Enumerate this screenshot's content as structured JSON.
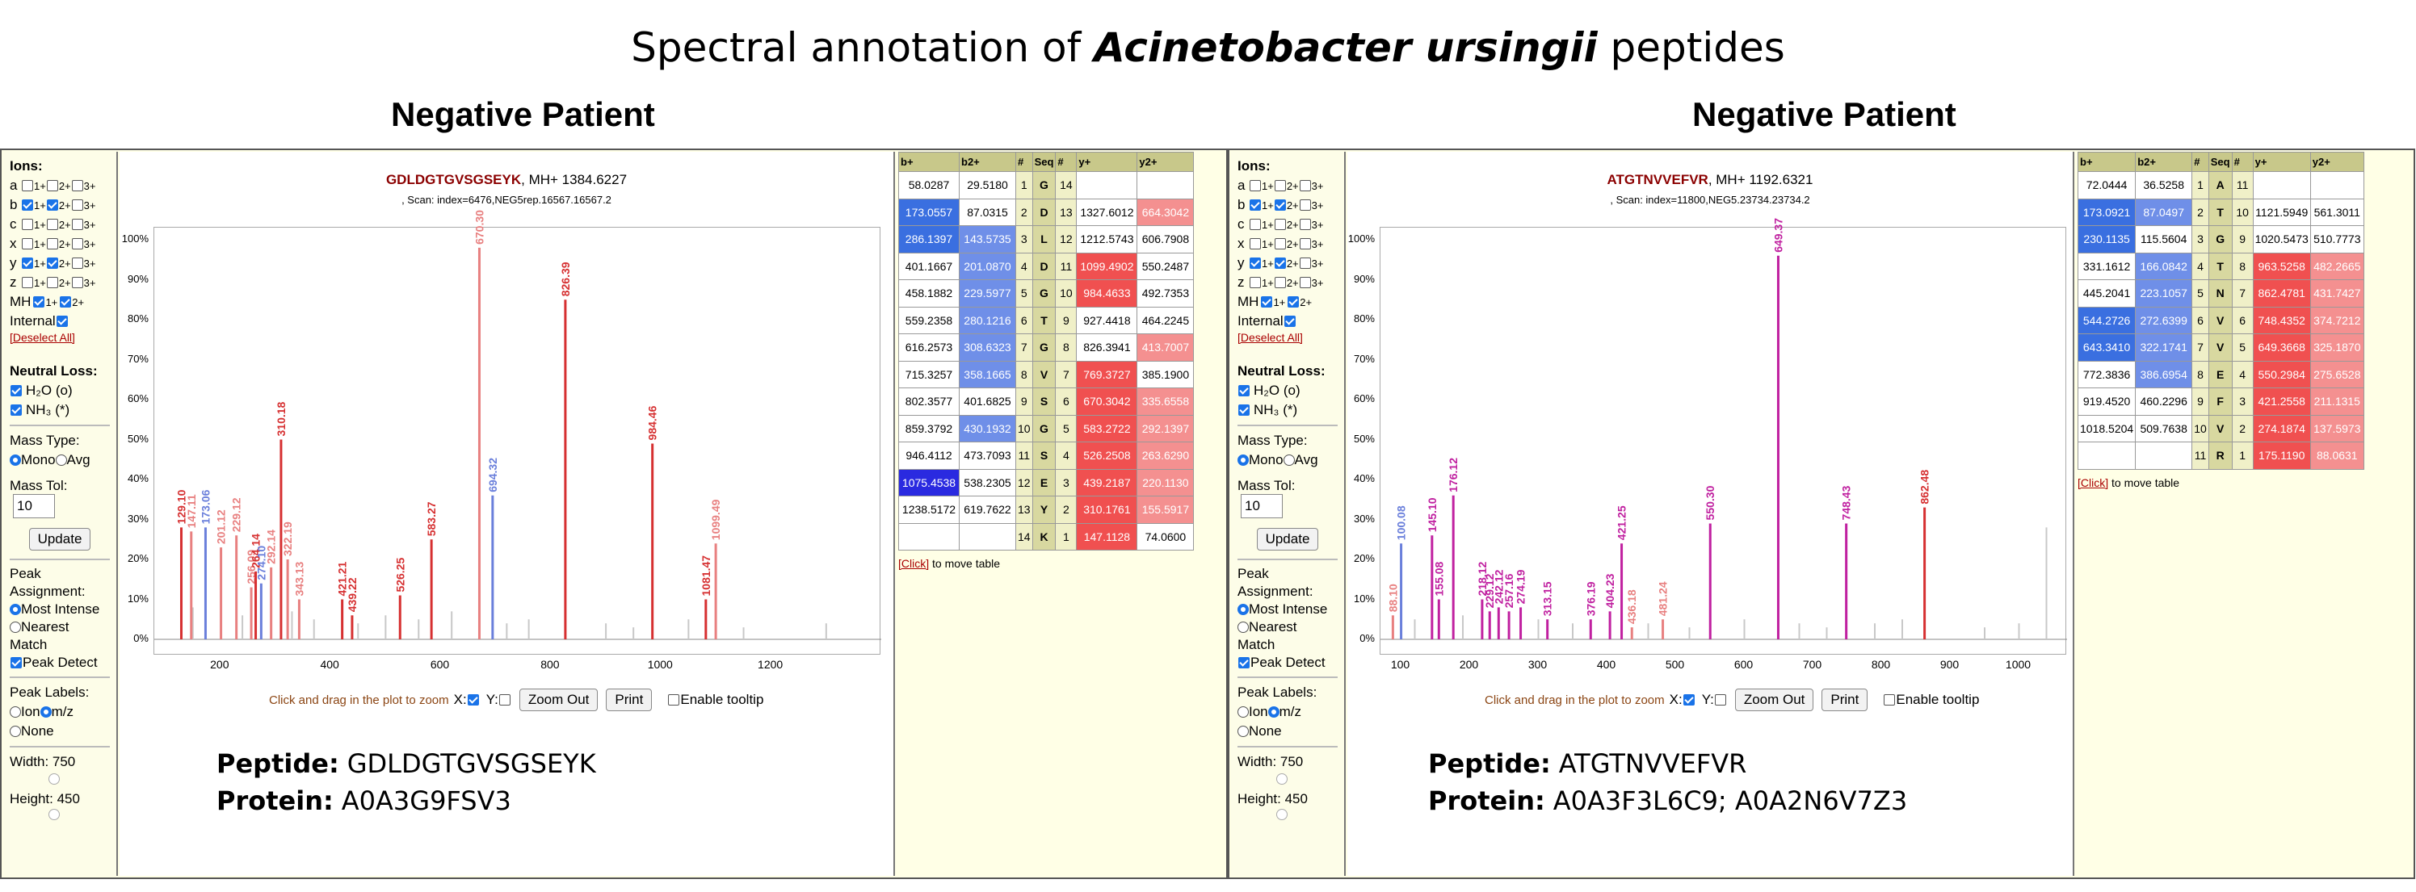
{
  "title": {
    "prefix": "Spectral annotation of ",
    "organism": "Acinetobacter ursingii",
    "suffix": " peptides"
  },
  "panels": [
    {
      "label": "Negative Patient",
      "sidebar": {
        "ions_label": "Ions:",
        "ion_rows": [
          {
            "ion": "a",
            "checked": [
              false,
              false,
              false
            ]
          },
          {
            "ion": "b",
            "checked": [
              true,
              true,
              false
            ]
          },
          {
            "ion": "c",
            "checked": [
              false,
              false,
              false
            ]
          },
          {
            "ion": "x",
            "checked": [
              false,
              false,
              false
            ]
          },
          {
            "ion": "y",
            "checked": [
              true,
              true,
              false
            ]
          },
          {
            "ion": "z",
            "checked": [
              false,
              false,
              false
            ]
          }
        ],
        "charges": [
          "1+",
          "2+",
          "3+"
        ],
        "mh_label": "MH",
        "mh_charges": [
          "1+",
          "2+"
        ],
        "internal_label": "Internal",
        "deselect": "[Deselect All]",
        "neutral_loss_label": "Neutral Loss:",
        "neutral_losses": [
          "H₂O (o)",
          "NH₃ (*)"
        ],
        "mass_type_label": "Mass Type:",
        "mass_types": [
          "Mono",
          "Avg"
        ],
        "mass_tol_label": "Mass Tol:",
        "mass_tol_value": "10",
        "update_label": "Update",
        "peak_assignment_label": "Peak Assignment:",
        "peak_assignment_options": [
          "Most Intense",
          "Nearest Match"
        ],
        "peak_detect_label": "Peak Detect",
        "peak_labels_label": "Peak Labels:",
        "peak_label_options": [
          "Ion",
          "m/z",
          "None"
        ],
        "width_label": "Width: 750",
        "height_label": "Height: 450"
      },
      "plot": {
        "sequence": "GDLDGTGVSGSEYK",
        "mh": ", MH+ 1384.6227",
        "scan": ", Scan: index=6476,NEG5rep.16567.16567.2",
        "hint": "Click and drag in the plot to zoom",
        "x_label": "X:",
        "y_label": "Y:",
        "zoom_out": "Zoom Out",
        "print": "Print",
        "tooltip": "Enable tooltip"
      },
      "info": {
        "peptide_label": "Peptide:",
        "peptide": "GDLDGTGVSGSEYK",
        "protein_label": "Protein:",
        "protein": "A0A3G9FSV3"
      },
      "table": {
        "headers": [
          "b+",
          "b2+",
          "#",
          "Seq",
          "#",
          "y+",
          "y2+"
        ],
        "rows": [
          [
            "58.0287",
            "29.5180",
            "1",
            "G",
            "14",
            "",
            ""
          ],
          [
            "173.0557",
            "87.0315",
            "2",
            "D",
            "13",
            "1327.6012",
            "664.3042"
          ],
          [
            "286.1397",
            "143.5735",
            "3",
            "L",
            "12",
            "1212.5743",
            "606.7908"
          ],
          [
            "401.1667",
            "201.0870",
            "4",
            "D",
            "11",
            "1099.4902",
            "550.2487"
          ],
          [
            "458.1882",
            "229.5977",
            "5",
            "G",
            "10",
            "984.4633",
            "492.7353"
          ],
          [
            "559.2358",
            "280.1216",
            "6",
            "T",
            "9",
            "927.4418",
            "464.2245"
          ],
          [
            "616.2573",
            "308.6323",
            "7",
            "G",
            "8",
            "826.3941",
            "413.7007"
          ],
          [
            "715.3257",
            "358.1665",
            "8",
            "V",
            "7",
            "769.3727",
            "385.1900"
          ],
          [
            "802.3577",
            "401.6825",
            "9",
            "S",
            "6",
            "670.3042",
            "335.6558"
          ],
          [
            "859.3792",
            "430.1932",
            "10",
            "G",
            "5",
            "583.2722",
            "292.1397"
          ],
          [
            "946.4112",
            "473.7093",
            "11",
            "S",
            "4",
            "526.2508",
            "263.6290"
          ],
          [
            "1075.4538",
            "538.2305",
            "12",
            "E",
            "3",
            "439.2187",
            "220.1130"
          ],
          [
            "1238.5172",
            "619.7622",
            "13",
            "Y",
            "2",
            "310.1761",
            "155.5917"
          ],
          [
            "",
            "",
            "14",
            "K",
            "1",
            "147.1128",
            "74.0600"
          ]
        ],
        "highlight": {
          "b1": [
            1,
            2,
            11
          ],
          "b2": [
            2,
            3,
            4,
            5,
            6,
            7,
            9
          ],
          "y1": [
            3,
            4,
            7,
            8,
            9,
            10,
            11,
            12,
            13
          ],
          "y2": [
            1,
            6,
            8,
            9,
            10,
            11,
            12
          ]
        },
        "click_note_link": "[Click]",
        "click_note_text": " to move table"
      },
      "chart_data": {
        "type": "bar",
        "xlim": [
          80,
          1400
        ],
        "ylim": [
          0,
          100
        ],
        "xticks": [
          200,
          400,
          600,
          800,
          1000,
          1200
        ],
        "yticks": [
          "0%",
          "10%",
          "20%",
          "30%",
          "40%",
          "50%",
          "60%",
          "70%",
          "80%",
          "90%",
          "100%"
        ],
        "peaks": [
          {
            "x": 129.1,
            "y": 28,
            "label": "129.10",
            "c": "#d63031"
          },
          {
            "x": 147.11,
            "y": 27,
            "label": "147.11",
            "c": "#e88080"
          },
          {
            "x": 173.06,
            "y": 28,
            "label": "173.06",
            "c": "#6a7fdb"
          },
          {
            "x": 201.12,
            "y": 23,
            "label": "201.12",
            "c": "#e88080"
          },
          {
            "x": 229.12,
            "y": 26,
            "label": "229.12",
            "c": "#e88080"
          },
          {
            "x": 256.09,
            "y": 13,
            "label": "256.09",
            "c": "#e88080"
          },
          {
            "x": 264.14,
            "y": 17,
            "label": "264.14",
            "c": "#d63031"
          },
          {
            "x": 274.1,
            "y": 14,
            "label": "274.10",
            "c": "#6a7fdb"
          },
          {
            "x": 292.14,
            "y": 18,
            "label": "292.14",
            "c": "#e88080"
          },
          {
            "x": 310.18,
            "y": 50,
            "label": "310.18",
            "c": "#d63031"
          },
          {
            "x": 322.19,
            "y": 20,
            "label": "322.19",
            "c": "#e88080"
          },
          {
            "x": 343.13,
            "y": 10,
            "label": "343.13",
            "c": "#e88080"
          },
          {
            "x": 421.21,
            "y": 10,
            "label": "421.21",
            "c": "#d63031"
          },
          {
            "x": 439.22,
            "y": 6,
            "label": "439.22",
            "c": "#d63031"
          },
          {
            "x": 526.25,
            "y": 11,
            "label": "526.25",
            "c": "#d63031"
          },
          {
            "x": 583.27,
            "y": 25,
            "label": "583.27",
            "c": "#d63031"
          },
          {
            "x": 670.3,
            "y": 98,
            "label": "670.30",
            "c": "#e88080"
          },
          {
            "x": 694.32,
            "y": 36,
            "label": "694.32",
            "c": "#6a7fdb"
          },
          {
            "x": 826.39,
            "y": 85,
            "label": "826.39",
            "c": "#d63031"
          },
          {
            "x": 984.46,
            "y": 49,
            "label": "984.46",
            "c": "#d63031"
          },
          {
            "x": 1081.47,
            "y": 10,
            "label": "1081.47",
            "c": "#d63031"
          },
          {
            "x": 1099.49,
            "y": 24,
            "label": "1099.49",
            "c": "#e88080"
          }
        ],
        "grey_peaks": [
          [
            150,
            8
          ],
          [
            240,
            6
          ],
          [
            330,
            7
          ],
          [
            370,
            5
          ],
          [
            450,
            4
          ],
          [
            500,
            6
          ],
          [
            560,
            5
          ],
          [
            620,
            7
          ],
          [
            720,
            4
          ],
          [
            760,
            5
          ],
          [
            900,
            4
          ],
          [
            950,
            3
          ],
          [
            1050,
            5
          ],
          [
            1150,
            3
          ],
          [
            1300,
            4
          ]
        ]
      }
    },
    {
      "label": "Negative Patient",
      "sidebar": {
        "ions_label": "Ions:",
        "ion_rows": [
          {
            "ion": "a",
            "checked": [
              false,
              false,
              false
            ]
          },
          {
            "ion": "b",
            "checked": [
              true,
              true,
              false
            ]
          },
          {
            "ion": "c",
            "checked": [
              false,
              false,
              false
            ]
          },
          {
            "ion": "x",
            "checked": [
              false,
              false,
              false
            ]
          },
          {
            "ion": "y",
            "checked": [
              true,
              true,
              false
            ]
          },
          {
            "ion": "z",
            "checked": [
              false,
              false,
              false
            ]
          }
        ],
        "charges": [
          "1+",
          "2+",
          "3+"
        ],
        "mh_label": "MH",
        "mh_charges": [
          "1+",
          "2+"
        ],
        "internal_label": "Internal",
        "deselect": "[Deselect All]",
        "neutral_loss_label": "Neutral Loss:",
        "neutral_losses": [
          "H₂O (o)",
          "NH₃ (*)"
        ],
        "mass_type_label": "Mass Type:",
        "mass_types": [
          "Mono",
          "Avg"
        ],
        "mass_tol_label": "Mass Tol:",
        "mass_tol_value": "10",
        "update_label": "Update",
        "peak_assignment_label": "Peak Assignment:",
        "peak_assignment_options": [
          "Most Intense",
          "Nearest Match"
        ],
        "peak_detect_label": "Peak Detect",
        "peak_labels_label": "Peak Labels:",
        "peak_label_options": [
          "Ion",
          "m/z",
          "None"
        ],
        "width_label": "Width: 750",
        "height_label": "Height: 450"
      },
      "plot": {
        "sequence": "ATGTNVVEFVR",
        "mh": ", MH+ 1192.6321",
        "scan": ", Scan: index=11800,NEG5.23734.23734.2",
        "hint": "Click and drag in the plot to zoom",
        "x_label": "X:",
        "y_label": "Y:",
        "zoom_out": "Zoom Out",
        "print": "Print",
        "tooltip": "Enable tooltip"
      },
      "info": {
        "peptide_label": "Peptide:",
        "peptide": "ATGTNVVEFVR",
        "protein_label": "Protein:",
        "protein": "A0A3F3L6C9; A0A2N6V7Z3"
      },
      "table": {
        "headers": [
          "b+",
          "b2+",
          "#",
          "Seq",
          "#",
          "y+",
          "y2+"
        ],
        "rows": [
          [
            "72.0444",
            "36.5258",
            "1",
            "A",
            "11",
            "",
            ""
          ],
          [
            "173.0921",
            "87.0497",
            "2",
            "T",
            "10",
            "1121.5949",
            "561.3011"
          ],
          [
            "230.1135",
            "115.5604",
            "3",
            "G",
            "9",
            "1020.5473",
            "510.7773"
          ],
          [
            "331.1612",
            "166.0842",
            "4",
            "T",
            "8",
            "963.5258",
            "482.2665"
          ],
          [
            "445.2041",
            "223.1057",
            "5",
            "N",
            "7",
            "862.4781",
            "431.7427"
          ],
          [
            "544.2726",
            "272.6399",
            "6",
            "V",
            "6",
            "748.4352",
            "374.7212"
          ],
          [
            "643.3410",
            "322.1741",
            "7",
            "V",
            "5",
            "649.3668",
            "325.1870"
          ],
          [
            "772.3836",
            "386.6954",
            "8",
            "E",
            "4",
            "550.2984",
            "275.6528"
          ],
          [
            "919.4520",
            "460.2296",
            "9",
            "F",
            "3",
            "421.2558",
            "211.1315"
          ],
          [
            "1018.5204",
            "509.7638",
            "10",
            "V",
            "2",
            "274.1874",
            "137.5973"
          ],
          [
            "",
            "",
            "11",
            "R",
            "1",
            "175.1190",
            "88.0631"
          ]
        ],
        "highlight": {
          "b1": [
            1,
            2,
            5,
            6
          ],
          "b2": [
            1,
            3,
            4,
            5,
            6,
            7
          ],
          "y1": [
            3,
            4,
            5,
            6,
            7,
            8,
            9,
            10
          ],
          "y2": [
            3,
            4,
            5,
            6,
            7,
            8,
            9,
            10
          ]
        },
        "click_note_link": "[Click]",
        "click_note_text": " to move table"
      },
      "chart_data": {
        "type": "bar",
        "xlim": [
          70,
          1070
        ],
        "ylim": [
          0,
          100
        ],
        "xticks": [
          100,
          200,
          300,
          400,
          500,
          600,
          700,
          800,
          900,
          1000
        ],
        "yticks": [
          "0%",
          "10%",
          "20%",
          "30%",
          "40%",
          "50%",
          "60%",
          "70%",
          "80%",
          "90%",
          "100%"
        ],
        "peaks": [
          {
            "x": 88.1,
            "y": 6,
            "label": "88.10",
            "c": "#e88080"
          },
          {
            "x": 100.08,
            "y": 24,
            "label": "100.08",
            "c": "#6a7fdb"
          },
          {
            "x": 145.1,
            "y": 26,
            "label": "145.10",
            "c": "#c020a0"
          },
          {
            "x": 155.08,
            "y": 10,
            "label": "155.08",
            "c": "#c020a0"
          },
          {
            "x": 176.12,
            "y": 36,
            "label": "176.12",
            "c": "#c020a0"
          },
          {
            "x": 218.12,
            "y": 10,
            "label": "218.12",
            "c": "#c020a0"
          },
          {
            "x": 229.12,
            "y": 7,
            "label": "229.12",
            "c": "#c020a0"
          },
          {
            "x": 242.12,
            "y": 8,
            "label": "242.12",
            "c": "#c020a0"
          },
          {
            "x": 257.16,
            "y": 7,
            "label": "257.16",
            "c": "#c020a0"
          },
          {
            "x": 274.19,
            "y": 8,
            "label": "274.19",
            "c": "#c020a0"
          },
          {
            "x": 313.15,
            "y": 5,
            "label": "313.15",
            "c": "#c020a0"
          },
          {
            "x": 376.19,
            "y": 5,
            "label": "376.19",
            "c": "#c020a0"
          },
          {
            "x": 404.23,
            "y": 7,
            "label": "404.23",
            "c": "#c020a0"
          },
          {
            "x": 421.25,
            "y": 24,
            "label": "421.25",
            "c": "#c020a0"
          },
          {
            "x": 436.18,
            "y": 3,
            "label": "436.18",
            "c": "#e88080"
          },
          {
            "x": 481.24,
            "y": 5,
            "label": "481.24",
            "c": "#e88080"
          },
          {
            "x": 550.3,
            "y": 29,
            "label": "550.30",
            "c": "#c020a0"
          },
          {
            "x": 649.37,
            "y": 96,
            "label": "649.37",
            "c": "#c020a0"
          },
          {
            "x": 748.43,
            "y": 29,
            "label": "748.43",
            "c": "#c020a0"
          },
          {
            "x": 862.48,
            "y": 33,
            "label": "862.48",
            "c": "#d63031"
          }
        ],
        "grey_peaks": [
          [
            120,
            5
          ],
          [
            190,
            6
          ],
          [
            300,
            5
          ],
          [
            350,
            4
          ],
          [
            460,
            4
          ],
          [
            520,
            3
          ],
          [
            600,
            5
          ],
          [
            680,
            4
          ],
          [
            720,
            3
          ],
          [
            790,
            4
          ],
          [
            830,
            5
          ],
          [
            950,
            3
          ],
          [
            1000,
            4
          ],
          [
            1040,
            28
          ]
        ]
      }
    }
  ]
}
